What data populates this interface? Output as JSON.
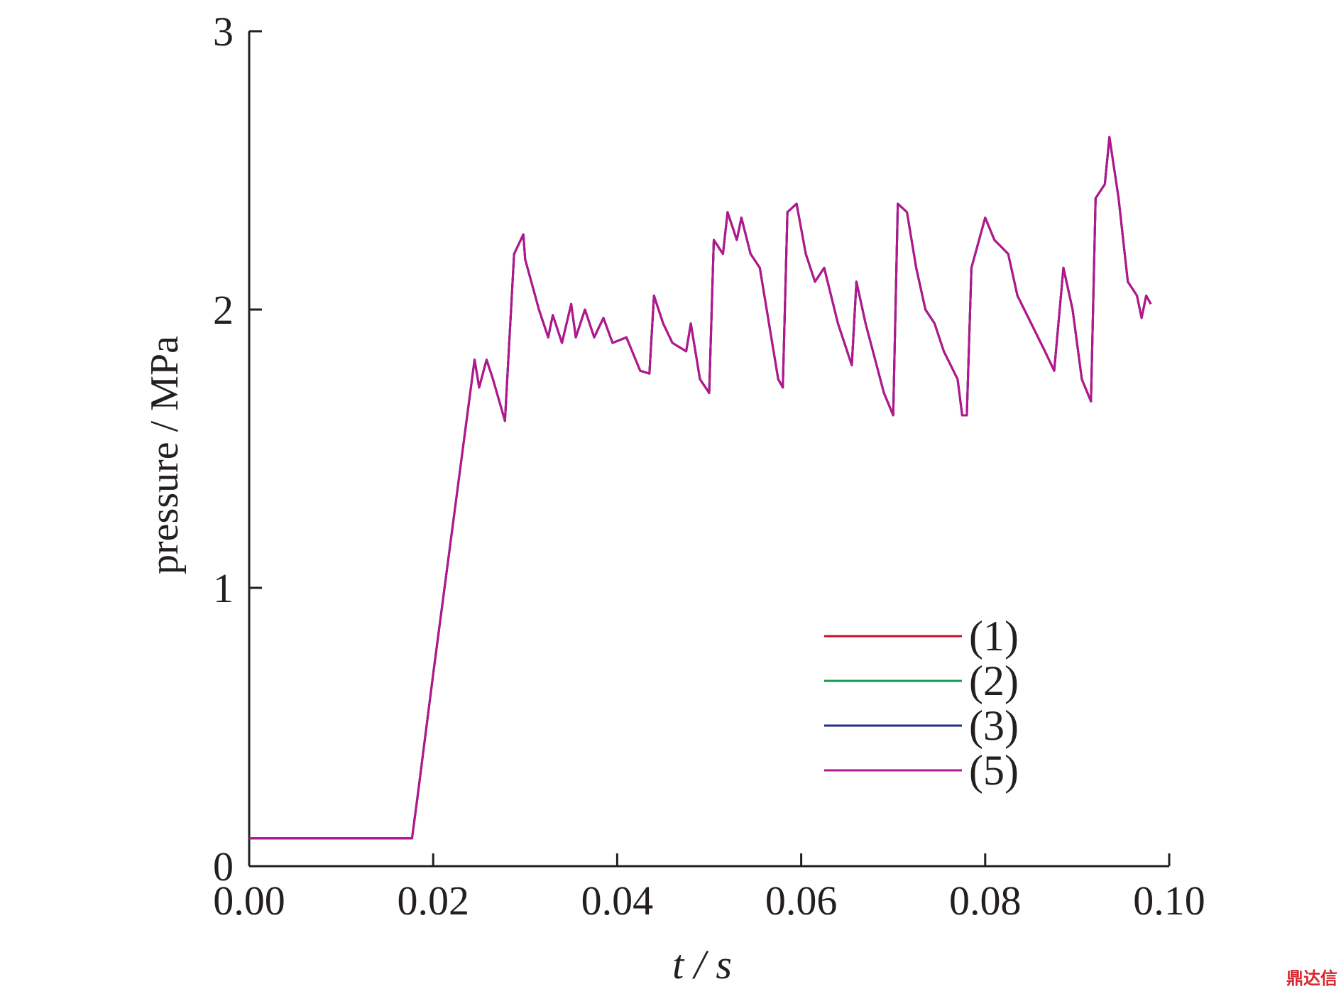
{
  "chart_data": {
    "type": "line",
    "xlabel": "t / s",
    "ylabel": "pressure / MPa",
    "watermark": "鼎达信",
    "x": [
      0,
      0.0177,
      0.0183,
      0.02,
      0.0245,
      0.025,
      0.0258,
      0.0265,
      0.0278,
      0.0288,
      0.0298,
      0.03,
      0.0315,
      0.0325,
      0.033,
      0.034,
      0.035,
      0.0355,
      0.0365,
      0.0375,
      0.0385,
      0.0395,
      0.041,
      0.0425,
      0.0435,
      0.044,
      0.045,
      0.046,
      0.0475,
      0.048,
      0.049,
      0.05,
      0.0505,
      0.0515,
      0.052,
      0.053,
      0.0535,
      0.0545,
      0.0555,
      0.0575,
      0.058,
      0.0585,
      0.0595,
      0.0605,
      0.0615,
      0.0625,
      0.064,
      0.0655,
      0.066,
      0.067,
      0.069,
      0.07,
      0.0705,
      0.0715,
      0.0725,
      0.0735,
      0.0745,
      0.0755,
      0.077,
      0.0775,
      0.078,
      0.0785,
      0.08,
      0.081,
      0.0825,
      0.0835,
      0.085,
      0.0865,
      0.0875,
      0.0885,
      0.0895,
      0.0905,
      0.0915,
      0.092,
      0.093,
      0.0935,
      0.0945,
      0.0955,
      0.0965,
      0.097,
      0.0975,
      0.098
    ],
    "series": [
      {
        "name": "(1)",
        "color": "#c8102e",
        "values": [
          0.1,
          0.1,
          0.25,
          0.69,
          1.82,
          1.72,
          1.82,
          1.75,
          1.6,
          2.2,
          2.27,
          2.18,
          2.0,
          1.9,
          1.98,
          1.88,
          2.02,
          1.9,
          2.0,
          1.9,
          1.97,
          1.88,
          1.9,
          1.78,
          1.77,
          2.05,
          1.95,
          1.88,
          1.85,
          1.95,
          1.75,
          1.7,
          2.25,
          2.2,
          2.35,
          2.25,
          2.33,
          2.2,
          2.15,
          1.75,
          1.72,
          2.35,
          2.38,
          2.2,
          2.1,
          2.15,
          1.95,
          1.8,
          2.1,
          1.95,
          1.7,
          1.62,
          2.38,
          2.35,
          2.15,
          2.0,
          1.95,
          1.85,
          1.75,
          1.62,
          1.62,
          2.15,
          2.33,
          2.25,
          2.2,
          2.05,
          1.95,
          1.85,
          1.78,
          2.15,
          2.0,
          1.75,
          1.67,
          2.4,
          2.45,
          2.62,
          2.4,
          2.1,
          2.05,
          1.97,
          2.05,
          2.02
        ]
      },
      {
        "name": "(2)",
        "color": "#1a9850",
        "values": [
          0.1,
          0.1,
          0.25,
          0.69,
          1.82,
          1.72,
          1.82,
          1.75,
          1.6,
          2.2,
          2.27,
          2.18,
          2.0,
          1.9,
          1.98,
          1.88,
          2.02,
          1.9,
          2.0,
          1.9,
          1.97,
          1.88,
          1.9,
          1.78,
          1.77,
          2.05,
          1.95,
          1.88,
          1.85,
          1.95,
          1.75,
          1.7,
          2.25,
          2.2,
          2.35,
          2.25,
          2.33,
          2.2,
          2.15,
          1.75,
          1.72,
          2.35,
          2.38,
          2.2,
          2.1,
          2.15,
          1.95,
          1.8,
          2.1,
          1.95,
          1.7,
          1.62,
          2.38,
          2.35,
          2.15,
          2.0,
          1.95,
          1.85,
          1.75,
          1.62,
          1.62,
          2.15,
          2.33,
          2.25,
          2.2,
          2.05,
          1.95,
          1.85,
          1.78,
          2.15,
          2.0,
          1.75,
          1.67,
          2.4,
          2.45,
          2.62,
          2.4,
          2.1,
          2.05,
          1.97,
          2.05,
          2.02
        ]
      },
      {
        "name": "(3)",
        "color": "#1f2e8a",
        "values": [
          0.1,
          0.1,
          0.25,
          0.69,
          1.82,
          1.72,
          1.82,
          1.75,
          1.6,
          2.2,
          2.27,
          2.18,
          2.0,
          1.9,
          1.98,
          1.88,
          2.02,
          1.9,
          2.0,
          1.9,
          1.97,
          1.88,
          1.9,
          1.78,
          1.77,
          2.05,
          1.95,
          1.88,
          1.85,
          1.95,
          1.75,
          1.7,
          2.25,
          2.2,
          2.35,
          2.25,
          2.33,
          2.2,
          2.15,
          1.75,
          1.72,
          2.35,
          2.38,
          2.2,
          2.1,
          2.15,
          1.95,
          1.8,
          2.1,
          1.95,
          1.7,
          1.62,
          2.38,
          2.35,
          2.15,
          2.0,
          1.95,
          1.85,
          1.75,
          1.62,
          1.62,
          2.15,
          2.33,
          2.25,
          2.2,
          2.05,
          1.95,
          1.85,
          1.78,
          2.15,
          2.0,
          1.75,
          1.67,
          2.4,
          2.45,
          2.62,
          2.4,
          2.1,
          2.05,
          1.97,
          2.05,
          2.02
        ]
      },
      {
        "name": "(5)",
        "color": "#b5168f",
        "values": [
          0.1,
          0.1,
          0.25,
          0.69,
          1.82,
          1.72,
          1.82,
          1.75,
          1.6,
          2.2,
          2.27,
          2.18,
          2.0,
          1.9,
          1.98,
          1.88,
          2.02,
          1.9,
          2.0,
          1.9,
          1.97,
          1.88,
          1.9,
          1.78,
          1.77,
          2.05,
          1.95,
          1.88,
          1.85,
          1.95,
          1.75,
          1.7,
          2.25,
          2.2,
          2.35,
          2.25,
          2.33,
          2.2,
          2.15,
          1.75,
          1.72,
          2.35,
          2.38,
          2.2,
          2.1,
          2.15,
          1.95,
          1.8,
          2.1,
          1.95,
          1.7,
          1.62,
          2.38,
          2.35,
          2.15,
          2.0,
          1.95,
          1.85,
          1.75,
          1.62,
          1.62,
          2.15,
          2.33,
          2.25,
          2.2,
          2.05,
          1.95,
          1.85,
          1.78,
          2.15,
          2.0,
          1.75,
          1.67,
          2.4,
          2.45,
          2.62,
          2.4,
          2.1,
          2.05,
          1.97,
          2.05,
          2.02
        ]
      }
    ],
    "xlim": [
      0,
      0.1
    ],
    "ylim": [
      0,
      3
    ],
    "xticks": [
      {
        "value": 0,
        "label": "0.00"
      },
      {
        "value": 0.02,
        "label": "0.02"
      },
      {
        "value": 0.04,
        "label": "0.04"
      },
      {
        "value": 0.06,
        "label": "0.06"
      },
      {
        "value": 0.08,
        "label": "0.08"
      },
      {
        "value": 0.1,
        "label": "0.10"
      }
    ],
    "yticks": [
      0,
      1,
      2,
      3
    ],
    "grid": false,
    "legend": "lower right"
  }
}
